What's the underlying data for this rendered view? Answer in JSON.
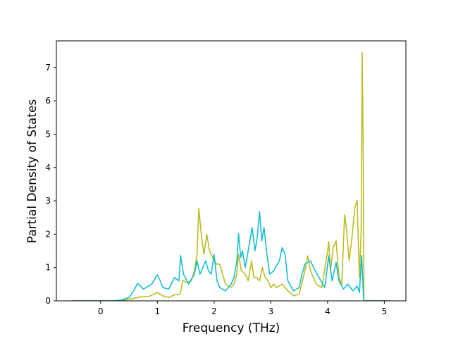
{
  "chart_data": {
    "type": "line",
    "xlabel": "Frequency (THz)",
    "ylabel": "Partial Density of States",
    "xlim": [
      -0.78,
      5.38
    ],
    "ylim": [
      0,
      7.8
    ],
    "x_ticks": [
      0,
      1,
      2,
      3,
      4,
      5
    ],
    "y_ticks": [
      0,
      1,
      2,
      3,
      4,
      5,
      6,
      7
    ],
    "grid": false,
    "legend": "none",
    "series": [
      {
        "color": "#bcbd22",
        "points": [
          [
            -0.5,
            0
          ],
          [
            0.2,
            0
          ],
          [
            0.4,
            0.02
          ],
          [
            0.55,
            0.06
          ],
          [
            0.7,
            0.12
          ],
          [
            0.85,
            0.13
          ],
          [
            1.0,
            0.25
          ],
          [
            1.1,
            0.15
          ],
          [
            1.2,
            0.1
          ],
          [
            1.3,
            0.18
          ],
          [
            1.4,
            0.2
          ],
          [
            1.45,
            0.62
          ],
          [
            1.5,
            0.55
          ],
          [
            1.6,
            0.6
          ],
          [
            1.65,
            0.9
          ],
          [
            1.7,
            1.4
          ],
          [
            1.73,
            2.78
          ],
          [
            1.78,
            1.9
          ],
          [
            1.82,
            1.4
          ],
          [
            1.87,
            2.0
          ],
          [
            1.92,
            1.5
          ],
          [
            2.0,
            1.2
          ],
          [
            2.05,
            1.1
          ],
          [
            2.1,
            1.1
          ],
          [
            2.2,
            0.5
          ],
          [
            2.3,
            0.4
          ],
          [
            2.35,
            0.5
          ],
          [
            2.4,
            0.8
          ],
          [
            2.43,
            1.4
          ],
          [
            2.48,
            0.9
          ],
          [
            2.55,
            0.8
          ],
          [
            2.6,
            0.6
          ],
          [
            2.66,
            1.2
          ],
          [
            2.7,
            0.7
          ],
          [
            2.75,
            0.7
          ],
          [
            2.8,
            0.6
          ],
          [
            2.85,
            1.0
          ],
          [
            2.9,
            0.7
          ],
          [
            2.95,
            0.6
          ],
          [
            3.0,
            0.4
          ],
          [
            3.05,
            0.5
          ],
          [
            3.1,
            0.4
          ],
          [
            3.2,
            0.5
          ],
          [
            3.3,
            0.3
          ],
          [
            3.4,
            0.15
          ],
          [
            3.5,
            0.2
          ],
          [
            3.6,
            0.9
          ],
          [
            3.65,
            1.35
          ],
          [
            3.7,
            0.9
          ],
          [
            3.8,
            0.5
          ],
          [
            3.9,
            0.4
          ],
          [
            4.0,
            1.5
          ],
          [
            4.02,
            1.78
          ],
          [
            4.05,
            0.9
          ],
          [
            4.1,
            1.6
          ],
          [
            4.15,
            1.8
          ],
          [
            4.2,
            0.7
          ],
          [
            4.25,
            0.5
          ],
          [
            4.3,
            2.58
          ],
          [
            4.33,
            2.2
          ],
          [
            4.38,
            1.2
          ],
          [
            4.43,
            1.9
          ],
          [
            4.48,
            2.8
          ],
          [
            4.52,
            3.02
          ],
          [
            4.56,
            0.7
          ],
          [
            4.59,
            2.0
          ],
          [
            4.61,
            7.45
          ],
          [
            4.63,
            4.0
          ],
          [
            4.64,
            0.0
          ],
          [
            5.1,
            0.0
          ]
        ]
      },
      {
        "color": "#17becf",
        "points": [
          [
            -0.5,
            0
          ],
          [
            0.2,
            0
          ],
          [
            0.35,
            0.02
          ],
          [
            0.5,
            0.1
          ],
          [
            0.6,
            0.35
          ],
          [
            0.65,
            0.52
          ],
          [
            0.7,
            0.45
          ],
          [
            0.75,
            0.35
          ],
          [
            0.8,
            0.4
          ],
          [
            0.9,
            0.5
          ],
          [
            1.0,
            0.78
          ],
          [
            1.05,
            0.6
          ],
          [
            1.1,
            0.4
          ],
          [
            1.2,
            0.35
          ],
          [
            1.3,
            0.7
          ],
          [
            1.38,
            0.6
          ],
          [
            1.41,
            1.36
          ],
          [
            1.46,
            0.8
          ],
          [
            1.55,
            0.5
          ],
          [
            1.65,
            0.8
          ],
          [
            1.7,
            1.2
          ],
          [
            1.75,
            0.8
          ],
          [
            1.85,
            1.2
          ],
          [
            1.9,
            0.9
          ],
          [
            1.95,
            0.8
          ],
          [
            2.0,
            1.4
          ],
          [
            2.05,
            0.6
          ],
          [
            2.1,
            0.4
          ],
          [
            2.2,
            0.3
          ],
          [
            2.3,
            0.5
          ],
          [
            2.35,
            0.7
          ],
          [
            2.4,
            1.2
          ],
          [
            2.43,
            2.02
          ],
          [
            2.47,
            1.3
          ],
          [
            2.5,
            1.5
          ],
          [
            2.55,
            1.0
          ],
          [
            2.62,
            1.7
          ],
          [
            2.67,
            2.2
          ],
          [
            2.72,
            1.5
          ],
          [
            2.76,
            1.9
          ],
          [
            2.8,
            2.68
          ],
          [
            2.84,
            1.8
          ],
          [
            2.88,
            2.2
          ],
          [
            2.93,
            1.4
          ],
          [
            2.98,
            0.8
          ],
          [
            3.05,
            0.9
          ],
          [
            3.15,
            1.2
          ],
          [
            3.2,
            1.6
          ],
          [
            3.25,
            1.4
          ],
          [
            3.3,
            0.6
          ],
          [
            3.4,
            0.3
          ],
          [
            3.5,
            0.4
          ],
          [
            3.55,
            0.8
          ],
          [
            3.6,
            1.1
          ],
          [
            3.7,
            1.2
          ],
          [
            3.75,
            1.0
          ],
          [
            3.85,
            0.7
          ],
          [
            3.95,
            0.4
          ],
          [
            4.02,
            1.35
          ],
          [
            4.08,
            0.6
          ],
          [
            4.15,
            1.15
          ],
          [
            4.2,
            0.6
          ],
          [
            4.28,
            0.35
          ],
          [
            4.35,
            0.5
          ],
          [
            4.45,
            0.3
          ],
          [
            4.52,
            0.45
          ],
          [
            4.56,
            0.25
          ],
          [
            4.6,
            1.36
          ],
          [
            4.63,
            0.2
          ],
          [
            4.64,
            0.0
          ],
          [
            5.1,
            0.0
          ]
        ]
      }
    ]
  }
}
